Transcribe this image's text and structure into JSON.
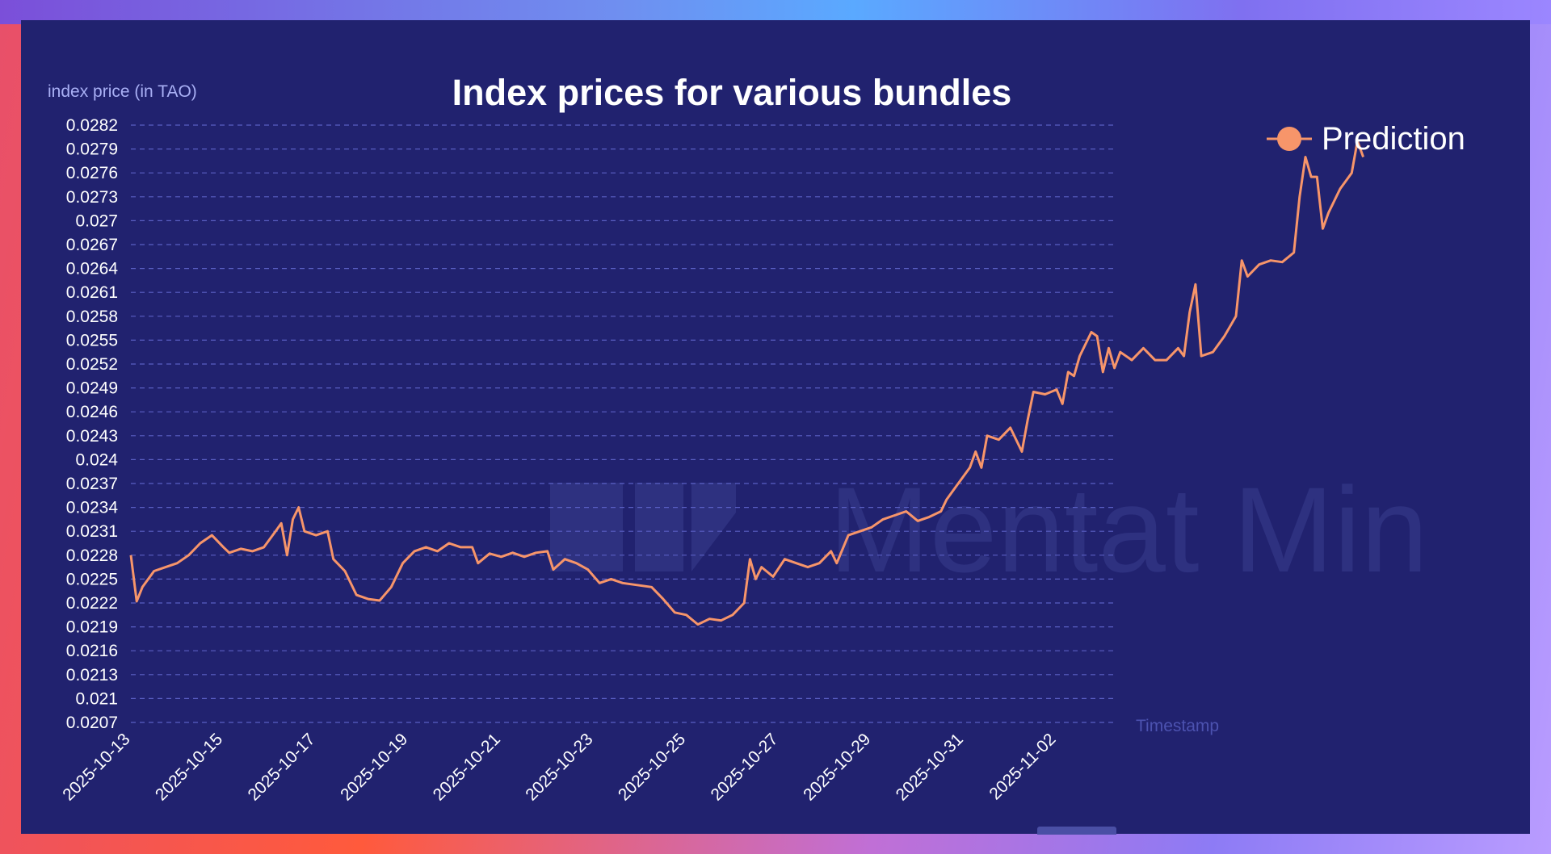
{
  "colors": {
    "panel": "#21226f",
    "series": "#f7956a",
    "grid": "#5a5fc3",
    "axis_label": "#a9b0f5",
    "watermark": "#2e3180"
  },
  "watermark_text": "Mentat Min",
  "chart_data": {
    "type": "line",
    "title": "Index prices for various bundles",
    "ylabel": "index price (in TAO)",
    "xlabel": "Timestamp",
    "legend": {
      "placement": "top-right",
      "entries": [
        "Prediction"
      ]
    },
    "grid": true,
    "ylim": [
      0.0207,
      0.0282
    ],
    "y_ticks": [
      "0.0282",
      "0.0279",
      "0.0276",
      "0.0273",
      "0.027",
      "0.0267",
      "0.0264",
      "0.0261",
      "0.0258",
      "0.0255",
      "0.0252",
      "0.0249",
      "0.0246",
      "0.0243",
      "0.024",
      "0.0237",
      "0.0234",
      "0.0231",
      "0.0228",
      "0.0225",
      "0.0222",
      "0.0219",
      "0.0216",
      "0.0213",
      "0.021",
      "0.0207"
    ],
    "x_ticks": [
      "2025-10-13",
      "2025-10-15",
      "2025-10-17",
      "2025-10-19",
      "2025-10-21",
      "2025-10-23",
      "2025-10-25",
      "2025-10-27",
      "2025-10-29",
      "2025-10-31",
      "2025-11-02"
    ],
    "series": [
      {
        "name": "Prediction",
        "points": [
          [
            "2025-10-13 00:00",
            0.0228
          ],
          [
            "2025-10-13 03:00",
            0.02222
          ],
          [
            "2025-10-13 06:00",
            0.0224
          ],
          [
            "2025-10-13 12:00",
            0.0226
          ],
          [
            "2025-10-13 18:00",
            0.02265
          ],
          [
            "2025-10-14 00:00",
            0.0227
          ],
          [
            "2025-10-14 06:00",
            0.0228
          ],
          [
            "2025-10-14 12:00",
            0.02295
          ],
          [
            "2025-10-14 18:00",
            0.02305
          ],
          [
            "2025-10-15 00:00",
            0.0229
          ],
          [
            "2025-10-15 03:00",
            0.02283
          ],
          [
            "2025-10-15 09:00",
            0.02288
          ],
          [
            "2025-10-15 15:00",
            0.02285
          ],
          [
            "2025-10-15 21:00",
            0.0229
          ],
          [
            "2025-10-16 03:00",
            0.0231
          ],
          [
            "2025-10-16 06:00",
            0.0232
          ],
          [
            "2025-10-16 09:00",
            0.0228
          ],
          [
            "2025-10-16 12:00",
            0.02325
          ],
          [
            "2025-10-16 15:00",
            0.0234
          ],
          [
            "2025-10-16 18:00",
            0.0231
          ],
          [
            "2025-10-17 00:00",
            0.02305
          ],
          [
            "2025-10-17 06:00",
            0.0231
          ],
          [
            "2025-10-17 09:00",
            0.02275
          ],
          [
            "2025-10-17 15:00",
            0.0226
          ],
          [
            "2025-10-17 21:00",
            0.0223
          ],
          [
            "2025-10-18 03:00",
            0.02225
          ],
          [
            "2025-10-18 09:00",
            0.02223
          ],
          [
            "2025-10-18 15:00",
            0.0224
          ],
          [
            "2025-10-18 21:00",
            0.0227
          ],
          [
            "2025-10-19 03:00",
            0.02285
          ],
          [
            "2025-10-19 09:00",
            0.0229
          ],
          [
            "2025-10-19 15:00",
            0.02285
          ],
          [
            "2025-10-19 21:00",
            0.02295
          ],
          [
            "2025-10-20 03:00",
            0.0229
          ],
          [
            "2025-10-20 09:00",
            0.0229
          ],
          [
            "2025-10-20 12:00",
            0.0227
          ],
          [
            "2025-10-20 18:00",
            0.02282
          ],
          [
            "2025-10-21 00:00",
            0.02278
          ],
          [
            "2025-10-21 06:00",
            0.02283
          ],
          [
            "2025-10-21 12:00",
            0.02278
          ],
          [
            "2025-10-21 18:00",
            0.02283
          ],
          [
            "2025-10-22 00:00",
            0.02285
          ],
          [
            "2025-10-22 03:00",
            0.02262
          ],
          [
            "2025-10-22 09:00",
            0.02275
          ],
          [
            "2025-10-22 15:00",
            0.0227
          ],
          [
            "2025-10-22 21:00",
            0.02262
          ],
          [
            "2025-10-23 03:00",
            0.02245
          ],
          [
            "2025-10-23 09:00",
            0.0225
          ],
          [
            "2025-10-23 15:00",
            0.02245
          ],
          [
            "2025-10-23 21:00",
            0.02243
          ],
          [
            "2025-10-24 06:00",
            0.0224
          ],
          [
            "2025-10-24 12:00",
            0.02225
          ],
          [
            "2025-10-24 18:00",
            0.02208
          ],
          [
            "2025-10-25 00:00",
            0.02205
          ],
          [
            "2025-10-25 06:00",
            0.02193
          ],
          [
            "2025-10-25 12:00",
            0.022
          ],
          [
            "2025-10-25 18:00",
            0.02198
          ],
          [
            "2025-10-26 00:00",
            0.02205
          ],
          [
            "2025-10-26 06:00",
            0.0222
          ],
          [
            "2025-10-26 09:00",
            0.02275
          ],
          [
            "2025-10-26 12:00",
            0.0225
          ],
          [
            "2025-10-26 15:00",
            0.02265
          ],
          [
            "2025-10-26 21:00",
            0.02253
          ],
          [
            "2025-10-27 03:00",
            0.02275
          ],
          [
            "2025-10-27 09:00",
            0.0227
          ],
          [
            "2025-10-27 15:00",
            0.02265
          ],
          [
            "2025-10-27 21:00",
            0.0227
          ],
          [
            "2025-10-28 03:00",
            0.02285
          ],
          [
            "2025-10-28 06:00",
            0.0227
          ],
          [
            "2025-10-28 12:00",
            0.02305
          ],
          [
            "2025-10-28 18:00",
            0.0231
          ],
          [
            "2025-10-29 00:00",
            0.02315
          ],
          [
            "2025-10-29 06:00",
            0.02325
          ],
          [
            "2025-10-29 12:00",
            0.0233
          ],
          [
            "2025-10-29 18:00",
            0.02335
          ],
          [
            "2025-10-30 00:00",
            0.02323
          ],
          [
            "2025-10-30 06:00",
            0.02328
          ],
          [
            "2025-10-30 12:00",
            0.02335
          ],
          [
            "2025-10-30 15:00",
            0.0235
          ],
          [
            "2025-10-30 21:00",
            0.0237
          ],
          [
            "2025-10-31 03:00",
            0.0239
          ],
          [
            "2025-10-31 06:00",
            0.0241
          ],
          [
            "2025-10-31 09:00",
            0.0239
          ],
          [
            "2025-10-31 12:00",
            0.0243
          ],
          [
            "2025-10-31 18:00",
            0.02425
          ],
          [
            "2025-11-01 00:00",
            0.0244
          ],
          [
            "2025-11-01 06:00",
            0.0241
          ],
          [
            "2025-11-01 09:00",
            0.0245
          ],
          [
            "2025-11-01 12:00",
            0.02485
          ],
          [
            "2025-11-01 18:00",
            0.02482
          ],
          [
            "2025-11-02 00:00",
            0.02488
          ],
          [
            "2025-11-02 03:00",
            0.0247
          ],
          [
            "2025-11-02 06:00",
            0.0251
          ],
          [
            "2025-11-02 09:00",
            0.02505
          ],
          [
            "2025-11-02 12:00",
            0.0253
          ],
          [
            "2025-11-02 18:00",
            0.0256
          ],
          [
            "2025-11-02 21:00",
            0.02555
          ],
          [
            "2025-11-03 00:00",
            0.0251
          ],
          [
            "2025-11-03 03:00",
            0.0254
          ],
          [
            "2025-11-03 06:00",
            0.02515
          ],
          [
            "2025-11-03 09:00",
            0.02535
          ],
          [
            "2025-11-03 15:00",
            0.02525
          ],
          [
            "2025-11-03 21:00",
            0.0254
          ],
          [
            "2025-11-04 03:00",
            0.02525
          ],
          [
            "2025-11-04 09:00",
            0.02525
          ],
          [
            "2025-11-04 15:00",
            0.0254
          ],
          [
            "2025-11-04 18:00",
            0.0253
          ],
          [
            "2025-11-04 21:00",
            0.02585
          ],
          [
            "2025-11-05 00:00",
            0.0262
          ],
          [
            "2025-11-05 03:00",
            0.0253
          ],
          [
            "2025-11-05 09:00",
            0.02535
          ],
          [
            "2025-11-05 15:00",
            0.02555
          ],
          [
            "2025-11-05 21:00",
            0.0258
          ],
          [
            "2025-11-06 00:00",
            0.0265
          ],
          [
            "2025-11-06 03:00",
            0.0263
          ],
          [
            "2025-11-06 09:00",
            0.02645
          ],
          [
            "2025-11-06 15:00",
            0.0265
          ],
          [
            "2025-11-06 21:00",
            0.02648
          ],
          [
            "2025-11-07 03:00",
            0.0266
          ],
          [
            "2025-11-07 06:00",
            0.0273
          ],
          [
            "2025-11-07 09:00",
            0.0278
          ],
          [
            "2025-11-07 12:00",
            0.02755
          ],
          [
            "2025-11-07 15:00",
            0.02755
          ],
          [
            "2025-11-07 18:00",
            0.0269
          ],
          [
            "2025-11-07 21:00",
            0.0271
          ],
          [
            "2025-11-08 03:00",
            0.0274
          ],
          [
            "2025-11-08 09:00",
            0.0276
          ],
          [
            "2025-11-08 12:00",
            0.028
          ],
          [
            "2025-11-08 15:00",
            0.0278
          ]
        ]
      }
    ]
  }
}
